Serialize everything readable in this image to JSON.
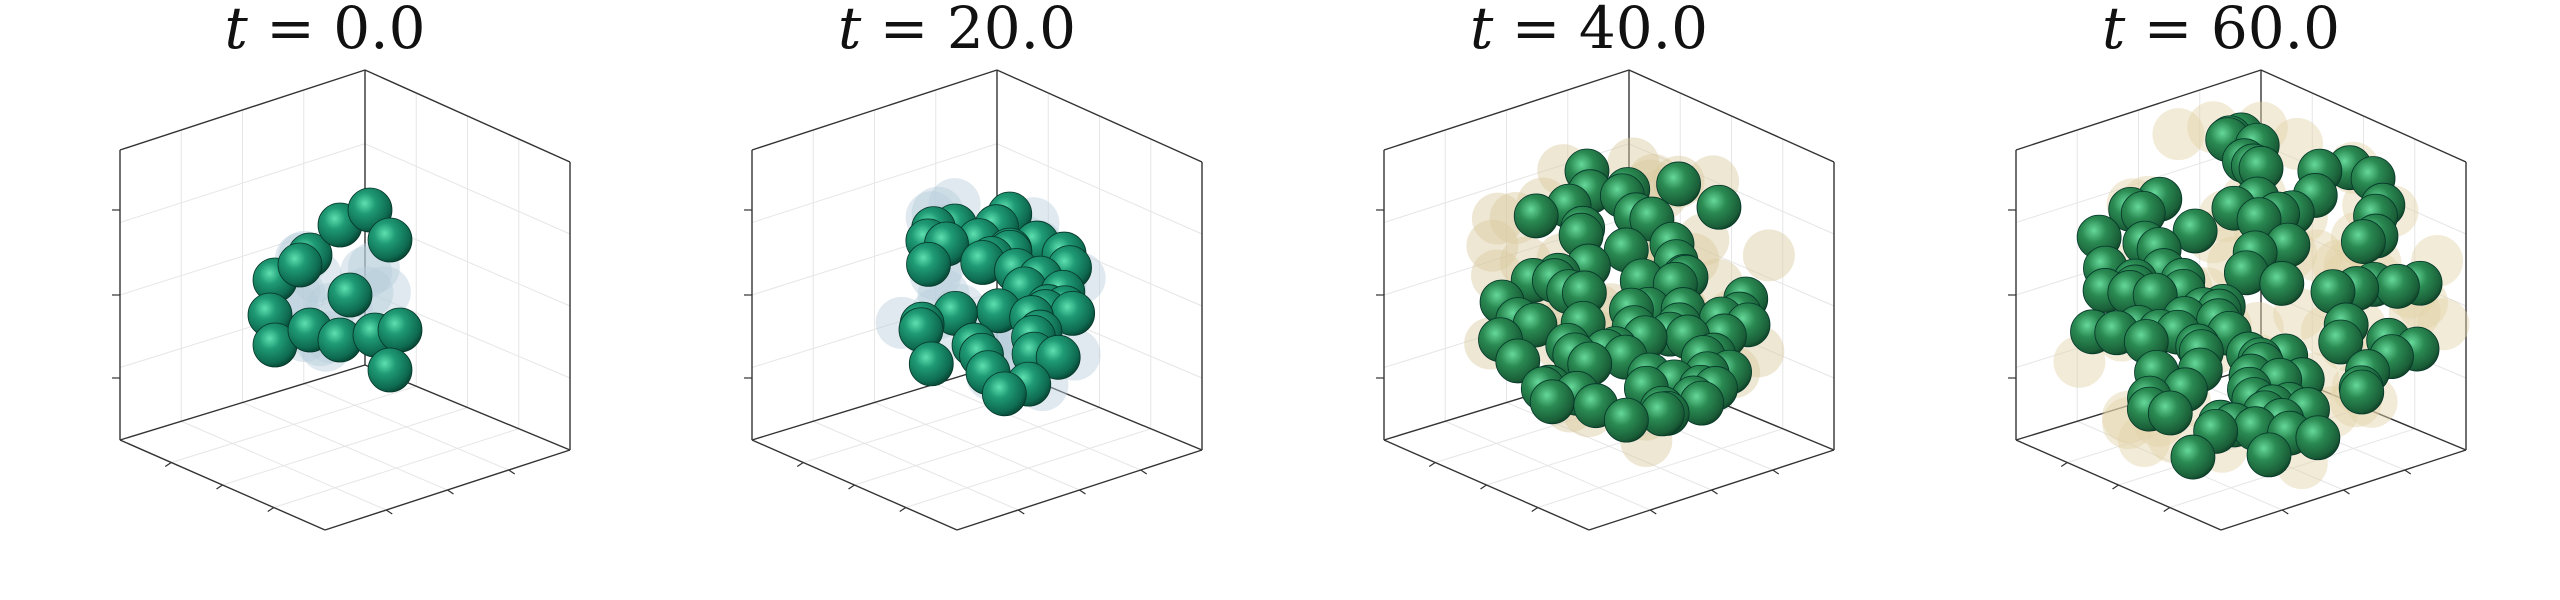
{
  "chart_data": [
    {
      "type": "scatter",
      "title_var": "t",
      "title_eq": " = ",
      "title_value": "0.0",
      "cells_front": 14,
      "cells_back": 16,
      "back_color": "#b9cfdc",
      "front_color": "#1f8a6c"
    },
    {
      "type": "scatter",
      "title_var": "t",
      "title_eq": " = ",
      "title_value": "20.0",
      "cells_front": 38,
      "cells_back": 30,
      "back_color": "#b9cfdc",
      "front_color": "#1f8a6c"
    },
    {
      "type": "scatter",
      "title_var": "t",
      "title_eq": " = ",
      "title_value": "40.0",
      "cells_front": 70,
      "cells_back": 45,
      "back_color": "#d9c9a0",
      "front_color": "#2a8a4f"
    },
    {
      "type": "scatter",
      "title_var": "t",
      "title_eq": " = ",
      "title_value": "60.0",
      "cells_front": 95,
      "cells_back": 60,
      "back_color": "#e2d3a8",
      "front_color": "#2a8a4f"
    }
  ],
  "colors": {
    "cell_dark": "#0c5a44",
    "cell_mid": "#1f8a6c",
    "cell_light": "#36b58c",
    "back_blue": "#b9cfdc",
    "back_tan": "#e2d3a8"
  }
}
